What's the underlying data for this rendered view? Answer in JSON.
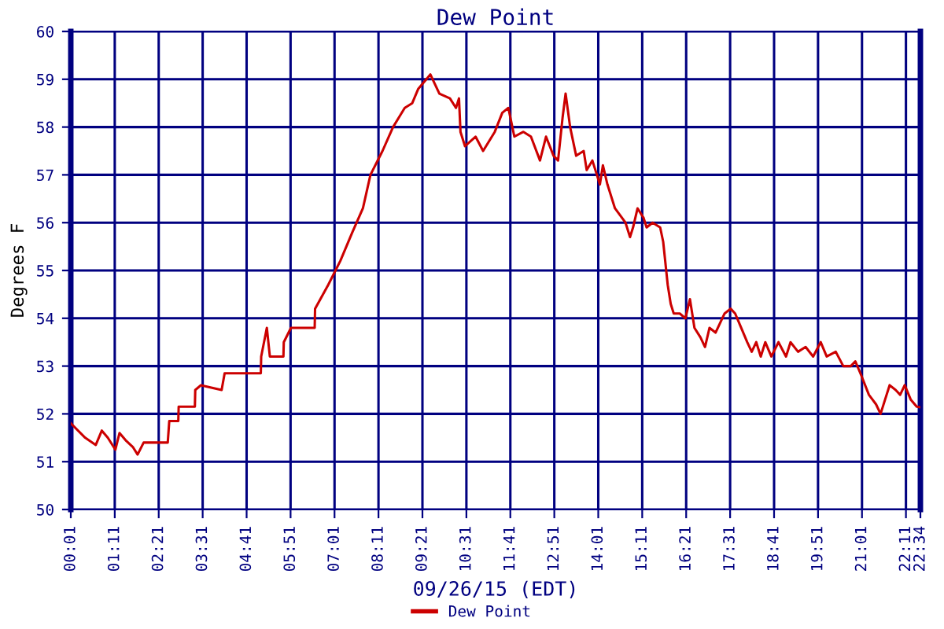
{
  "chart_data": {
    "type": "line",
    "title": "Dew Point",
    "xlabel": "09/26/15 (EDT)",
    "ylabel": "Degrees F",
    "xlim": [
      0.0167,
      22.567
    ],
    "xticks": [
      {
        "value": 0.0167,
        "label": "00:01"
      },
      {
        "value": 1.1833,
        "label": "01:11"
      },
      {
        "value": 2.35,
        "label": "02:21"
      },
      {
        "value": 3.5167,
        "label": "03:31"
      },
      {
        "value": 4.6833,
        "label": "04:41"
      },
      {
        "value": 5.85,
        "label": "05:51"
      },
      {
        "value": 7.0167,
        "label": "07:01"
      },
      {
        "value": 8.1833,
        "label": "08:11"
      },
      {
        "value": 9.35,
        "label": "09:21"
      },
      {
        "value": 10.5167,
        "label": "10:31"
      },
      {
        "value": 11.6833,
        "label": "11:41"
      },
      {
        "value": 12.85,
        "label": "12:51"
      },
      {
        "value": 14.0167,
        "label": "14:01"
      },
      {
        "value": 15.1833,
        "label": "15:11"
      },
      {
        "value": 16.35,
        "label": "16:21"
      },
      {
        "value": 17.5167,
        "label": "17:31"
      },
      {
        "value": 18.6833,
        "label": "18:41"
      },
      {
        "value": 19.85,
        "label": "19:51"
      },
      {
        "value": 21.0167,
        "label": "21:01"
      },
      {
        "value": 22.1833,
        "label": "22:11"
      },
      {
        "value": 22.567,
        "label": "22:34"
      }
    ],
    "ylim": [
      50,
      60
    ],
    "yticks": [
      50,
      51,
      52,
      53,
      54,
      55,
      56,
      57,
      58,
      59,
      60
    ],
    "grid": true,
    "legend": "bottom",
    "line_style": "solid",
    "series": [
      {
        "name": "Dew Point",
        "color": "#cc0000",
        "x": [
          0.02,
          0.4,
          0.68,
          0.84,
          1.0,
          1.2,
          1.31,
          1.47,
          1.67,
          1.79,
          1.95,
          2.59,
          2.63,
          2.87,
          2.88,
          3.31,
          3.32,
          3.47,
          4.02,
          4.1,
          5.06,
          5.07,
          5.22,
          5.3,
          5.66,
          5.67,
          5.86,
          6.49,
          6.5,
          6.85,
          7.17,
          7.49,
          7.77,
          7.97,
          8.29,
          8.57,
          8.88,
          9.08,
          9.24,
          9.56,
          9.8,
          10.08,
          10.24,
          10.32,
          10.36,
          10.48,
          10.76,
          10.96,
          11.27,
          11.47,
          11.63,
          11.79,
          12.03,
          12.23,
          12.47,
          12.63,
          12.83,
          12.95,
          13.07,
          13.15,
          13.27,
          13.43,
          13.63,
          13.71,
          13.86,
          14.06,
          14.14,
          14.26,
          14.46,
          14.74,
          14.86,
          14.94,
          15.06,
          15.22,
          15.3,
          15.46,
          15.66,
          15.74,
          15.86,
          15.94,
          16.02,
          16.18,
          16.33,
          16.45,
          16.57,
          16.73,
          16.85,
          16.97,
          17.13,
          17.25,
          17.37,
          17.53,
          17.65,
          17.81,
          17.97,
          18.09,
          18.21,
          18.33,
          18.45,
          18.61,
          18.8,
          19.0,
          19.12,
          19.32,
          19.52,
          19.72,
          19.92,
          20.08,
          20.32,
          20.52,
          20.72,
          20.84,
          21.0,
          21.2,
          21.39,
          21.51,
          21.63,
          21.75,
          21.91,
          22.03,
          22.15,
          22.31,
          22.47,
          22.56
        ],
        "values": [
          51.8,
          51.5,
          51.35,
          51.65,
          51.5,
          51.25,
          51.6,
          51.45,
          51.3,
          51.15,
          51.4,
          51.4,
          51.85,
          51.85,
          52.15,
          52.15,
          52.5,
          52.6,
          52.5,
          52.85,
          52.85,
          53.2,
          53.8,
          53.2,
          53.2,
          53.5,
          53.8,
          53.8,
          54.2,
          54.7,
          55.2,
          55.8,
          56.3,
          57.0,
          57.5,
          58.0,
          58.4,
          58.5,
          58.8,
          59.1,
          58.7,
          58.6,
          58.4,
          58.6,
          57.9,
          57.6,
          57.8,
          57.5,
          57.9,
          58.3,
          58.4,
          57.8,
          57.9,
          57.8,
          57.3,
          57.8,
          57.4,
          57.3,
          58.2,
          58.7,
          58.0,
          57.4,
          57.5,
          57.1,
          57.3,
          56.8,
          57.2,
          56.8,
          56.3,
          56.0,
          55.7,
          55.9,
          56.3,
          56.1,
          55.9,
          56.0,
          55.9,
          55.6,
          54.7,
          54.3,
          54.1,
          54.1,
          54.0,
          54.4,
          53.8,
          53.6,
          53.4,
          53.8,
          53.7,
          53.9,
          54.1,
          54.2,
          54.1,
          53.8,
          53.5,
          53.3,
          53.5,
          53.2,
          53.5,
          53.2,
          53.5,
          53.2,
          53.5,
          53.3,
          53.4,
          53.2,
          53.5,
          53.2,
          53.3,
          53.0,
          53.0,
          53.1,
          52.8,
          52.4,
          52.2,
          52.0,
          52.3,
          52.6,
          52.5,
          52.4,
          52.6,
          52.3,
          52.15,
          52.14
        ]
      }
    ]
  }
}
